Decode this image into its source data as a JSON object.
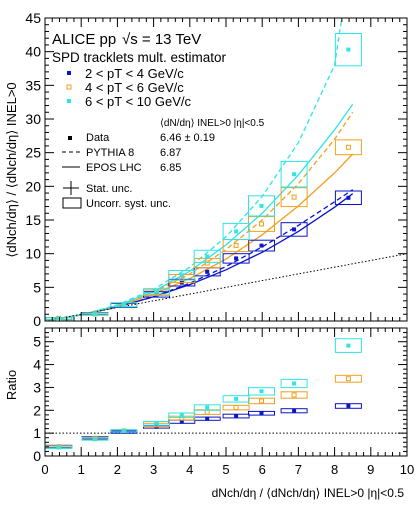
{
  "header": {
    "experiment": "ALICE pp",
    "energy": "√s = 13 TeV",
    "estimator": "SPD tracklets mult. estimator"
  },
  "legend_pt": [
    {
      "label": "2 < pT < 4 GeV/c",
      "color": "#0a14c8"
    },
    {
      "label": "4 < pT < 6 GeV/c",
      "color": "#f0a01e"
    },
    {
      "label": "6 < pT < 10 GeV/c",
      "color": "#2ee6e6"
    }
  ],
  "legend_source": {
    "column_header": "⟨dN/dη⟩ INEL>0 |η|<0.5",
    "rows": [
      {
        "label": "Data",
        "value": "6.46 ± 0.19"
      },
      {
        "label": "PYTHIA 8",
        "value": "6.87"
      },
      {
        "label": "EPOS LHC",
        "value": "6.85"
      }
    ],
    "stat_label": "Stat. unc.",
    "syst_label": "Uncorr. syst. unc."
  },
  "axes": {
    "upper_ylabel": "⟨dNch/dη⟩ / ⟨dNch/dη⟩ INEL>0",
    "lower_ylabel": "Ratio",
    "xlabel": "dNch/dη / ⟨dNch/dη⟩ INEL>0 |η|<0.5"
  },
  "chart_data": [
    {
      "type": "scatter",
      "panel": "upper",
      "xlim": [
        0,
        10
      ],
      "ylim": [
        0,
        45
      ],
      "x_ticks": [
        0,
        1,
        2,
        3,
        4,
        5,
        6,
        7,
        8,
        9,
        10
      ],
      "y_ticks": [
        0,
        5,
        10,
        15,
        20,
        25,
        30,
        35,
        40,
        45
      ],
      "series": [
        {
          "name": "2 < pT < 4 GeV/c",
          "color": "#0a14c8",
          "marker": "filled-square",
          "x": [
            0.38,
            1.38,
            2.18,
            3.08,
            3.78,
            4.48,
            5.28,
            5.98,
            6.88,
            8.38
          ],
          "y": [
            0.42,
            1.1,
            2.3,
            3.95,
            5.7,
            7.3,
            9.3,
            11.2,
            13.6,
            18.3
          ],
          "syst": [
            0.1,
            0.15,
            0.3,
            0.4,
            0.5,
            0.6,
            0.7,
            0.8,
            1.0,
            1.0
          ]
        },
        {
          "name": "4 < pT < 6 GeV/c",
          "color": "#f0a01e",
          "marker": "open-square",
          "x": [
            0.38,
            1.38,
            2.18,
            3.08,
            3.78,
            4.48,
            5.28,
            5.98,
            6.88,
            8.38
          ],
          "y": [
            0.4,
            1.05,
            2.4,
            4.2,
            6.3,
            8.6,
            11.2,
            14.4,
            18.4,
            25.8
          ],
          "syst": [
            0.1,
            0.15,
            0.3,
            0.4,
            0.6,
            0.7,
            0.9,
            1.1,
            1.4,
            1.1
          ]
        },
        {
          "name": "6 < pT < 10 GeV/c",
          "color": "#2ee6e6",
          "marker": "filled-square",
          "x": [
            0.38,
            1.38,
            2.18,
            3.08,
            3.78,
            4.48,
            5.28,
            5.98,
            6.88,
            8.38
          ],
          "y": [
            0.38,
            1.0,
            2.4,
            4.4,
            6.8,
            9.6,
            13.3,
            17.1,
            21.8,
            40.3
          ],
          "syst": [
            0.1,
            0.15,
            0.3,
            0.4,
            0.7,
            0.9,
            1.2,
            1.5,
            1.9,
            2.4
          ]
        }
      ],
      "model_curves": [
        {
          "name": "PYTHIA 8",
          "style": "dashed",
          "color": "#0a14c8",
          "x": [
            0.2,
            1,
            2,
            3,
            4,
            5,
            6,
            7,
            8,
            8.5
          ],
          "y": [
            0.2,
            0.9,
            2.1,
            3.6,
            5.6,
            8.1,
            11.0,
            14.2,
            17.7,
            19.5
          ]
        },
        {
          "name": "PYTHIA 8",
          "style": "dashed",
          "color": "#f0a01e",
          "x": [
            0.2,
            1,
            2,
            3,
            4,
            5,
            6,
            7,
            8,
            8.5
          ],
          "y": [
            0.2,
            0.9,
            2.3,
            4.3,
            7.0,
            10.6,
            15.0,
            20.4,
            27.0,
            31.0
          ]
        },
        {
          "name": "PYTHIA 8",
          "style": "dashed",
          "color": "#2ee6e6",
          "x": [
            0.2,
            1,
            2,
            3,
            4,
            5,
            6,
            7,
            8,
            8.2
          ],
          "y": [
            0.2,
            0.9,
            2.4,
            4.7,
            8.0,
            12.5,
            18.5,
            26.5,
            38.0,
            45.0
          ]
        },
        {
          "name": "EPOS LHC",
          "style": "solid",
          "color": "#0a14c8",
          "x": [
            0.2,
            1,
            2,
            3,
            4,
            5,
            6,
            7,
            8,
            8.5
          ],
          "y": [
            0.2,
            0.9,
            2.1,
            3.6,
            5.4,
            7.6,
            10.2,
            13.3,
            16.9,
            18.9
          ]
        },
        {
          "name": "EPOS LHC",
          "style": "solid",
          "color": "#f0a01e",
          "x": [
            0.2,
            1,
            2,
            3,
            4,
            5,
            6,
            7,
            8,
            8.5
          ],
          "y": [
            0.2,
            0.9,
            2.2,
            4.0,
            6.3,
            9.2,
            12.8,
            17.1,
            22.0,
            24.8
          ]
        },
        {
          "name": "EPOS LHC",
          "style": "solid",
          "color": "#2ee6e6",
          "x": [
            0.2,
            1,
            2,
            3,
            4,
            5,
            6,
            7,
            8,
            8.5
          ],
          "y": [
            0.2,
            0.9,
            2.3,
            4.4,
            7.4,
            11.3,
            16.0,
            21.7,
            28.4,
            32.2
          ]
        },
        {
          "name": "",
          "style": "dotted",
          "color": "#000000",
          "x": [
            0,
            10
          ],
          "y": [
            0,
            10
          ]
        }
      ]
    },
    {
      "type": "scatter",
      "panel": "lower",
      "xlim": [
        0,
        10
      ],
      "ylim": [
        0,
        5.6
      ],
      "y_ticks": [
        0,
        1,
        2,
        3,
        4,
        5
      ],
      "reference_line": 1,
      "series": [
        {
          "name": "2 < pT < 4 GeV/c",
          "color": "#0a14c8",
          "marker": "filled-square",
          "x": [
            0.38,
            1.38,
            2.18,
            3.08,
            3.78,
            4.48,
            5.28,
            5.98,
            6.88,
            8.38
          ],
          "y": [
            0.42,
            0.79,
            1.05,
            1.28,
            1.5,
            1.63,
            1.75,
            1.87,
            1.98,
            2.19
          ],
          "syst": [
            0.05,
            0.05,
            0.05,
            0.06,
            0.07,
            0.07,
            0.08,
            0.08,
            0.09,
            0.1
          ]
        },
        {
          "name": "4 < pT < 6 GeV/c",
          "color": "#f0a01e",
          "marker": "open-square",
          "x": [
            0.38,
            1.38,
            2.18,
            3.08,
            3.78,
            4.48,
            5.28,
            5.98,
            6.88,
            8.38
          ],
          "y": [
            0.4,
            0.76,
            1.1,
            1.36,
            1.66,
            1.92,
            2.12,
            2.41,
            2.67,
            3.38
          ],
          "syst": [
            0.05,
            0.05,
            0.05,
            0.07,
            0.08,
            0.1,
            0.1,
            0.12,
            0.14,
            0.15
          ]
        },
        {
          "name": "6 < pT < 10 GeV/c",
          "color": "#2ee6e6",
          "marker": "filled-square",
          "x": [
            0.38,
            1.38,
            2.18,
            3.08,
            3.78,
            4.48,
            5.28,
            5.98,
            6.88,
            8.38
          ],
          "y": [
            0.38,
            0.74,
            1.1,
            1.43,
            1.78,
            2.12,
            2.5,
            2.83,
            3.17,
            4.83
          ],
          "syst": [
            0.05,
            0.05,
            0.05,
            0.08,
            0.1,
            0.12,
            0.14,
            0.16,
            0.18,
            0.3
          ]
        }
      ]
    }
  ]
}
